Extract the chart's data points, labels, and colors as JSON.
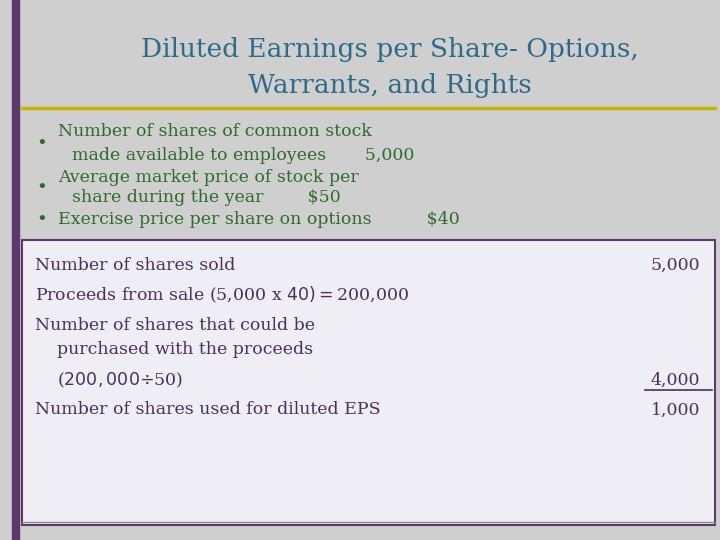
{
  "title_line1": "Diluted Earnings per Share- Options,",
  "title_line2": "Warrants, and Rights",
  "title_color": "#2E6B8A",
  "bg_color": "#D0CFCF",
  "left_bar_color": "#5B3A6B",
  "bullet_color": "#2E6B2E",
  "box_text_color": "#4A3060",
  "bullet_points": [
    [
      "Number of shares of common stock",
      "made available to employees       5,000"
    ],
    [
      "Average market price of stock per",
      "share during the year        $50"
    ],
    [
      "Exercise price per share on options          $40"
    ]
  ],
  "table_lines": [
    {
      "text": "Number of shares sold",
      "value": "5,000",
      "underline": false
    },
    {
      "text": "Proceeds from sale (5,000 x $40) = $200,000",
      "value": "",
      "underline": false
    },
    {
      "text": "Number of shares that could be",
      "value": "",
      "underline": false
    },
    {
      "text": "    purchased with the proceeds",
      "value": "",
      "underline": false
    },
    {
      "text": "    ($200,000 ÷ $50)",
      "value": "4,000",
      "underline": true
    },
    {
      "text": "Number of shares used for diluted EPS",
      "value": "1,000",
      "underline": false
    }
  ],
  "yellow_line_color": "#C8B400",
  "box_border_color": "#5B3A6B",
  "box_bg_color": "#F0EEF5"
}
